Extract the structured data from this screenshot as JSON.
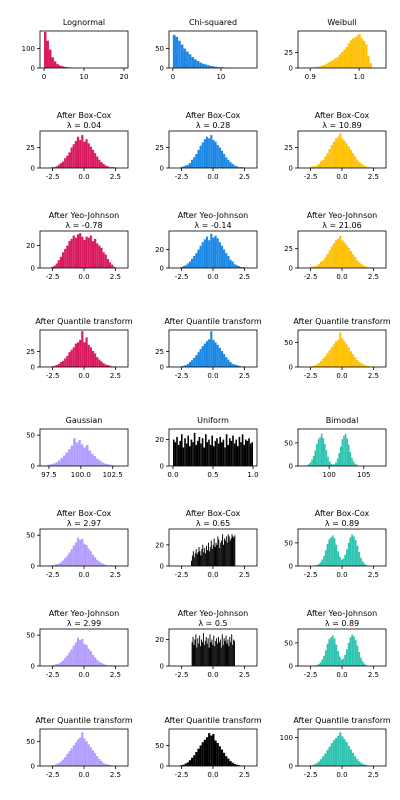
{
  "chart_data": [
    {
      "type": "bar",
      "title": "Lognormal",
      "color": "#D81B60",
      "xlim": [
        -1,
        21
      ],
      "ylim": [
        0,
        190
      ],
      "xticks": [
        0,
        10,
        20
      ],
      "yticks": [
        0,
        100
      ],
      "bins_start": 0,
      "bin_width": 0.62,
      "values": [
        185,
        140,
        95,
        55,
        34,
        20,
        13,
        9,
        6,
        4,
        3,
        2,
        1,
        1,
        1,
        0,
        1,
        0,
        0,
        0,
        0,
        0,
        0,
        0,
        0,
        0,
        0,
        0,
        0,
        1
      ]
    },
    {
      "type": "bar",
      "title": "Chi-squared",
      "color": "#1E88E5",
      "xlim": [
        -0.8,
        17.5
      ],
      "ylim": [
        0,
        95
      ],
      "xticks": [
        0,
        10
      ],
      "yticks": [
        0,
        50
      ],
      "bins_start": 0,
      "bin_width": 0.55,
      "values": [
        85,
        80,
        70,
        60,
        50,
        42,
        35,
        28,
        22,
        18,
        14,
        11,
        9,
        7,
        5,
        4,
        3,
        2,
        2,
        1,
        1,
        1,
        0,
        0,
        0,
        0,
        0,
        0,
        0,
        1
      ]
    },
    {
      "type": "bar",
      "title": "Weibull",
      "color": "#FFC107",
      "xlim": [
        0.875,
        1.055
      ],
      "ylim": [
        0,
        60
      ],
      "xticks": [
        0.9,
        1.0
      ],
      "yticks": [
        0,
        25
      ],
      "bins_start": 0.9,
      "bin_width": 0.0045,
      "values": [
        1,
        1,
        2,
        2,
        3,
        4,
        5,
        7,
        9,
        11,
        13,
        16,
        18,
        22,
        26,
        30,
        34,
        40,
        45,
        48,
        50,
        53,
        55,
        48,
        44,
        38,
        20,
        8
      ]
    },
    {
      "type": "bar",
      "title": "After Box-Cox",
      "subtitle": "λ = 0.04",
      "color": "#D81B60",
      "xlim": [
        -3.5,
        3.5
      ],
      "ylim": [
        0,
        45
      ],
      "xticks": [
        -2.5,
        0.0,
        2.5
      ],
      "yticks": [
        0,
        25
      ],
      "bins_start": -2.6,
      "bin_width": 0.17,
      "values": [
        1,
        1,
        2,
        4,
        6,
        8,
        12,
        15,
        19,
        25,
        29,
        33,
        38,
        34,
        40,
        32,
        35,
        30,
        26,
        22,
        18,
        14,
        10,
        7,
        5,
        3,
        2,
        1,
        1,
        1
      ]
    },
    {
      "type": "bar",
      "title": "After Box-Cox",
      "subtitle": "λ = 0.28",
      "color": "#1E88E5",
      "xlim": [
        -3.5,
        3.5
      ],
      "ylim": [
        0,
        45
      ],
      "xticks": [
        -2.5,
        0.0,
        2.5
      ],
      "yticks": [
        0,
        25
      ],
      "bins_start": -2.6,
      "bin_width": 0.17,
      "values": [
        1,
        2,
        3,
        4,
        6,
        10,
        13,
        17,
        22,
        27,
        31,
        35,
        38,
        36,
        40,
        34,
        32,
        28,
        25,
        21,
        17,
        13,
        10,
        7,
        5,
        3,
        2,
        1,
        1,
        1
      ]
    },
    {
      "type": "bar",
      "title": "After Box-Cox",
      "subtitle": "λ = 10.89",
      "color": "#FFC107",
      "xlim": [
        -3.5,
        3.5
      ],
      "ylim": [
        0,
        45
      ],
      "xticks": [
        -2.5,
        0.0,
        2.5
      ],
      "yticks": [
        0,
        25
      ],
      "bins_start": -2.6,
      "bin_width": 0.17,
      "values": [
        1,
        2,
        2,
        3,
        5,
        8,
        10,
        14,
        18,
        23,
        28,
        32,
        36,
        38,
        42,
        36,
        33,
        30,
        26,
        22,
        18,
        14,
        10,
        7,
        5,
        3,
        2,
        1,
        1,
        1
      ]
    },
    {
      "type": "bar",
      "title": "After Yeo-Johnson",
      "subtitle": "λ = -0.78",
      "color": "#D81B60",
      "xlim": [
        -3.5,
        3.5
      ],
      "ylim": [
        0,
        33
      ],
      "xticks": [
        -2.5,
        0.0,
        2.5
      ],
      "yticks": [
        0,
        20
      ],
      "bins_start": -2.6,
      "bin_width": 0.17,
      "values": [
        1,
        2,
        4,
        7,
        10,
        14,
        17,
        20,
        24,
        26,
        29,
        27,
        30,
        31,
        28,
        25,
        28,
        27,
        29,
        24,
        26,
        22,
        20,
        18,
        14,
        12,
        8,
        5,
        3,
        1
      ]
    },
    {
      "type": "bar",
      "title": "After Yeo-Johnson",
      "subtitle": "λ = -0.14",
      "color": "#1E88E5",
      "xlim": [
        -3.5,
        3.5
      ],
      "ylim": [
        0,
        40
      ],
      "xticks": [
        -2.5,
        0.0,
        2.5
      ],
      "yticks": [
        0,
        20
      ],
      "bins_start": -2.6,
      "bin_width": 0.17,
      "values": [
        1,
        2,
        3,
        5,
        7,
        10,
        13,
        16,
        20,
        24,
        28,
        31,
        34,
        30,
        37,
        33,
        35,
        32,
        28,
        24,
        20,
        16,
        13,
        9,
        7,
        4,
        3,
        2,
        1,
        1
      ]
    },
    {
      "type": "bar",
      "title": "After Yeo-Johnson",
      "subtitle": "λ = 21.06",
      "color": "#FFC107",
      "xlim": [
        -3.5,
        3.5
      ],
      "ylim": [
        0,
        48
      ],
      "xticks": [
        -2.5,
        0.0,
        2.5
      ],
      "yticks": [
        0,
        25
      ],
      "bins_start": -2.6,
      "bin_width": 0.17,
      "values": [
        1,
        2,
        2,
        3,
        5,
        8,
        10,
        14,
        18,
        23,
        28,
        32,
        36,
        38,
        42,
        36,
        33,
        30,
        26,
        22,
        18,
        14,
        10,
        7,
        5,
        3,
        2,
        1,
        1,
        1
      ]
    },
    {
      "type": "bar",
      "title": "After Quantile transform",
      "color": "#D81B60",
      "xlim": [
        -3.5,
        3.5
      ],
      "ylim": [
        0,
        60
      ],
      "xticks": [
        -2.5,
        0.0,
        2.5
      ],
      "yticks": [
        0,
        25
      ],
      "bins_start": -2.6,
      "bin_width": 0.17,
      "values": [
        1,
        2,
        3,
        5,
        8,
        10,
        14,
        18,
        24,
        28,
        32,
        38,
        40,
        44,
        58,
        40,
        48,
        36,
        32,
        26,
        22,
        16,
        12,
        9,
        6,
        4,
        3,
        2,
        1,
        1
      ]
    },
    {
      "type": "bar",
      "title": "After Quantile transform",
      "color": "#1E88E5",
      "xlim": [
        -3.5,
        3.5
      ],
      "ylim": [
        0,
        60
      ],
      "xticks": [
        -2.5,
        0.0,
        2.5
      ],
      "yticks": [
        0,
        25
      ],
      "bins_start": -2.6,
      "bin_width": 0.17,
      "values": [
        1,
        2,
        3,
        5,
        8,
        11,
        15,
        19,
        24,
        29,
        34,
        38,
        42,
        45,
        58,
        44,
        40,
        36,
        31,
        26,
        21,
        16,
        12,
        8,
        5,
        4,
        3,
        2,
        1,
        1
      ]
    },
    {
      "type": "bar",
      "title": "After Quantile transform",
      "color": "#FFC107",
      "xlim": [
        -3.5,
        3.5
      ],
      "ylim": [
        0,
        75
      ],
      "xticks": [
        -2.5,
        0.0,
        2.5
      ],
      "yticks": [
        0,
        50
      ],
      "bins_start": -2.6,
      "bin_width": 0.17,
      "values": [
        1,
        2,
        3,
        5,
        8,
        12,
        17,
        22,
        28,
        34,
        40,
        46,
        52,
        55,
        70,
        58,
        52,
        46,
        40,
        32,
        26,
        20,
        14,
        10,
        7,
        5,
        3,
        2,
        1,
        1
      ]
    },
    {
      "type": "bar",
      "title": "Gaussian",
      "color": "#B39DFF",
      "xlim": [
        96.8,
        103.7
      ],
      "ylim": [
        0,
        60
      ],
      "xticks": [
        97.5,
        100.0,
        102.5
      ],
      "yticks": [
        0,
        50
      ],
      "bins_start": 97.2,
      "bin_width": 0.2,
      "values": [
        1,
        2,
        3,
        4,
        6,
        9,
        13,
        17,
        22,
        27,
        33,
        45,
        38,
        42,
        35,
        30,
        34,
        25,
        20,
        16,
        12,
        9,
        6,
        4,
        3,
        2,
        1,
        1
      ]
    },
    {
      "type": "bar",
      "title": "Uniform",
      "color": "#000000",
      "xlim": [
        -0.05,
        1.05
      ],
      "ylim": [
        0,
        28
      ],
      "xticks": [
        0.0,
        0.5,
        1.0
      ],
      "yticks": [
        0,
        20
      ],
      "bins_start": 0,
      "bin_width": 0.02,
      "values": [
        20,
        18,
        22,
        16,
        19,
        24,
        14,
        21,
        17,
        23,
        15,
        20,
        18,
        25,
        16,
        19,
        22,
        17,
        21,
        14,
        24,
        18,
        20,
        16,
        23,
        15,
        19,
        21,
        17,
        22,
        18,
        20,
        14,
        24,
        16,
        21,
        19,
        23,
        17,
        20,
        15,
        22,
        18,
        24,
        16,
        20,
        19,
        21,
        17,
        18
      ]
    },
    {
      "type": "bar",
      "title": "Bimodal",
      "color": "#2EC4B0",
      "xlim": [
        95.5,
        108.2
      ],
      "ylim": [
        0,
        80
      ],
      "xticks": [
        100,
        105
      ],
      "yticks": [
        0,
        50
      ],
      "bins_start": 96.5,
      "bin_width": 0.23,
      "values": [
        1,
        2,
        4,
        8,
        14,
        22,
        34,
        48,
        58,
        62,
        70,
        60,
        48,
        34,
        20,
        10,
        5,
        3,
        4,
        8,
        16,
        28,
        42,
        58,
        66,
        70,
        60,
        46,
        30,
        18,
        10,
        5,
        3,
        1
      ]
    },
    {
      "type": "bar",
      "title": "After Box-Cox",
      "subtitle": "λ = 2.97",
      "color": "#B39DFF",
      "xlim": [
        -3.5,
        3.5
      ],
      "ylim": [
        0,
        60
      ],
      "xticks": [
        -2.5,
        0.0,
        2.5
      ],
      "yticks": [
        0,
        50
      ],
      "bins_start": -2.6,
      "bin_width": 0.17,
      "values": [
        1,
        2,
        3,
        4,
        6,
        9,
        13,
        17,
        22,
        27,
        33,
        38,
        46,
        42,
        44,
        36,
        34,
        28,
        24,
        18,
        14,
        10,
        7,
        5,
        3,
        2,
        1,
        1,
        1,
        1
      ]
    },
    {
      "type": "bar",
      "title": "After Box-Cox",
      "subtitle": "λ = 0.65",
      "color": "#000000",
      "xlim": [
        -3.5,
        3.5
      ],
      "ylim": [
        0,
        35
      ],
      "xticks": [
        -2.5,
        0.0,
        2.5
      ],
      "yticks": [
        0,
        20
      ],
      "bins_start": -1.75,
      "bin_width": 0.075,
      "values": [
        5,
        10,
        14,
        8,
        12,
        16,
        11,
        13,
        18,
        14,
        10,
        16,
        20,
        13,
        17,
        12,
        19,
        15,
        22,
        14,
        18,
        24,
        16,
        20,
        26,
        18,
        22,
        20,
        28,
        25,
        17,
        22,
        24,
        30,
        20,
        26,
        24,
        28,
        22,
        30,
        28,
        24,
        26,
        30,
        28,
        27,
        29
      ]
    },
    {
      "type": "bar",
      "title": "After Box-Cox",
      "subtitle": "λ = 0.89",
      "color": "#2EC4B0",
      "xlim": [
        -3.5,
        3.5
      ],
      "ylim": [
        0,
        80
      ],
      "xticks": [
        -2.5,
        0.0,
        2.5
      ],
      "yticks": [
        0,
        50
      ],
      "bins_start": -2.2,
      "bin_width": 0.14,
      "values": [
        1,
        2,
        4,
        8,
        14,
        22,
        34,
        48,
        58,
        62,
        66,
        60,
        46,
        32,
        20,
        14,
        16,
        24,
        36,
        50,
        62,
        68,
        64,
        56,
        44,
        30,
        18,
        10,
        5,
        2
      ]
    },
    {
      "type": "bar",
      "title": "After Yeo-Johnson",
      "subtitle": "λ = 2.99",
      "color": "#B39DFF",
      "xlim": [
        -3.5,
        3.5
      ],
      "ylim": [
        0,
        60
      ],
      "xticks": [
        -2.5,
        0.0,
        2.5
      ],
      "yticks": [
        0,
        50
      ],
      "bins_start": -2.6,
      "bin_width": 0.17,
      "values": [
        1,
        2,
        3,
        4,
        6,
        9,
        13,
        17,
        22,
        27,
        33,
        38,
        46,
        42,
        44,
        36,
        34,
        28,
        24,
        18,
        14,
        10,
        7,
        5,
        3,
        2,
        1,
        1,
        1,
        1
      ]
    },
    {
      "type": "bar",
      "title": "After Yeo-Johnson",
      "subtitle": "λ = 0.5",
      "color": "#000000",
      "xlim": [
        -3.5,
        3.5
      ],
      "ylim": [
        0,
        28
      ],
      "xticks": [
        -2.5,
        0.0,
        2.5
      ],
      "yticks": [
        0,
        20
      ],
      "bins_start": -1.7,
      "bin_width": 0.075,
      "values": [
        18,
        22,
        16,
        20,
        24,
        14,
        21,
        17,
        23,
        15,
        20,
        18,
        25,
        16,
        19,
        22,
        17,
        21,
        14,
        24,
        18,
        20,
        16,
        23,
        15,
        19,
        21,
        17,
        22,
        18,
        20,
        14,
        24,
        16,
        21,
        19,
        23,
        17,
        20,
        15,
        22,
        18,
        24,
        16,
        20,
        19
      ]
    },
    {
      "type": "bar",
      "title": "After Yeo-Johnson",
      "subtitle": "λ = 0.89",
      "color": "#2EC4B0",
      "xlim": [
        -3.5,
        3.5
      ],
      "ylim": [
        0,
        80
      ],
      "xticks": [
        -2.5,
        0.0,
        2.5
      ],
      "yticks": [
        0,
        50
      ],
      "bins_start": -2.2,
      "bin_width": 0.14,
      "values": [
        1,
        2,
        4,
        8,
        14,
        22,
        34,
        48,
        58,
        62,
        66,
        60,
        46,
        32,
        20,
        14,
        16,
        24,
        36,
        50,
        62,
        68,
        64,
        56,
        44,
        30,
        18,
        10,
        5,
        2
      ]
    },
    {
      "type": "bar",
      "title": "After Quantile transform",
      "color": "#B39DFF",
      "xlim": [
        -3.5,
        3.5
      ],
      "ylim": [
        0,
        75
      ],
      "xticks": [
        -2.5,
        0.0,
        2.5
      ],
      "yticks": [
        0,
        50
      ],
      "bins_start": -2.6,
      "bin_width": 0.17,
      "values": [
        1,
        2,
        4,
        6,
        9,
        13,
        18,
        24,
        30,
        36,
        42,
        48,
        54,
        58,
        68,
        56,
        50,
        44,
        38,
        32,
        26,
        20,
        14,
        10,
        6,
        4,
        3,
        2,
        1,
        1
      ]
    },
    {
      "type": "bar",
      "title": "After Quantile transform",
      "color": "#000000",
      "xlim": [
        -3.5,
        3.5
      ],
      "ylim": [
        0,
        90
      ],
      "xticks": [
        -2.5,
        0.0,
        2.5
      ],
      "yticks": [
        0,
        50
      ],
      "bins_start": -2.6,
      "bin_width": 0.17,
      "values": [
        2,
        3,
        6,
        9,
        14,
        20,
        26,
        34,
        42,
        50,
        58,
        64,
        70,
        80,
        74,
        78,
        62,
        56,
        48,
        40,
        32,
        24,
        18,
        12,
        8,
        5,
        3,
        2,
        1,
        1
      ]
    },
    {
      "type": "bar",
      "title": "After Quantile transform",
      "color": "#2EC4B0",
      "xlim": [
        -3.5,
        3.5
      ],
      "ylim": [
        0,
        130
      ],
      "xticks": [
        -2.5,
        0.0,
        2.5
      ],
      "yticks": [
        0,
        100
      ],
      "bins_start": -2.6,
      "bin_width": 0.17,
      "values": [
        2,
        3,
        6,
        10,
        16,
        24,
        34,
        44,
        56,
        68,
        80,
        90,
        98,
        106,
        118,
        104,
        94,
        84,
        70,
        58,
        46,
        34,
        24,
        16,
        10,
        6,
        4,
        2,
        1,
        1
      ]
    }
  ]
}
